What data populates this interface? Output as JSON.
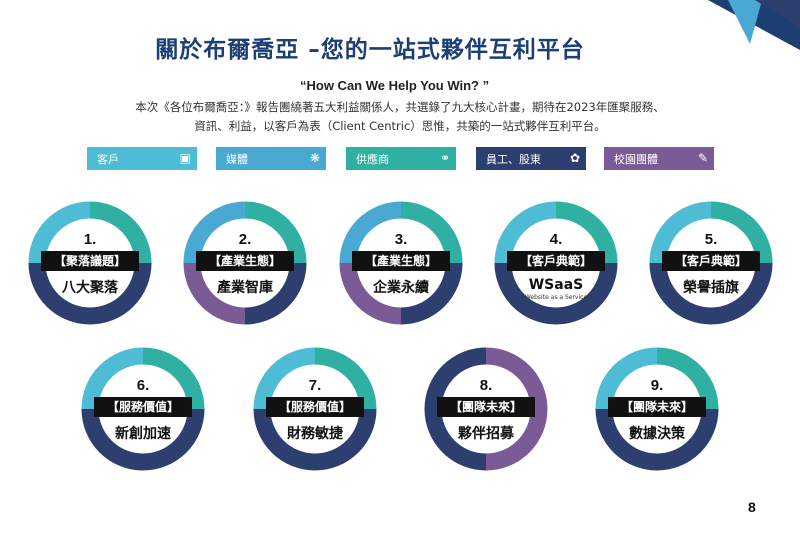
{
  "title": "關於布爾喬亞 –您的一站式夥伴互利平台",
  "quote": "“How Can We Help You Win? ”",
  "description": {
    "line1": "本次《各位布爾喬亞：》報告團繞著五大利益關係人，共選錄了九大核心計畫，期待在2023年匯聚服務、",
    "line2": "資訊、利益，以客戶為表（Client Centric）思惟，共築的一站式夥伴互利平台。"
  },
  "stakeholders": [
    {
      "label": "客戶",
      "icon": "briefcase-icon",
      "color": "#4fbcd5"
    },
    {
      "label": "媒體",
      "icon": "network-icon",
      "color": "#4aa9d2"
    },
    {
      "label": "供應商",
      "icon": "handshake-icon",
      "color": "#2fb0a3"
    },
    {
      "label": "員工、股東",
      "icon": "hands-icon",
      "color": "#2d3f6e"
    },
    {
      "label": "校園團體",
      "icon": "clipboard-icon",
      "color": "#7b5b96"
    }
  ],
  "projects": [
    {
      "num": "1.",
      "tag": "【聚落議題】",
      "name": "八大聚落",
      "sub": "",
      "colors": [
        "#2fb0a3",
        "#2d3f6e",
        "#2d3f6e",
        "#4fbcd5"
      ]
    },
    {
      "num": "2.",
      "tag": "【產業生態】",
      "name": "產業智庫",
      "sub": "",
      "colors": [
        "#2fb0a3",
        "#2d3f6e",
        "#7b5b96",
        "#4aa9d2"
      ]
    },
    {
      "num": "3.",
      "tag": "【產業生態】",
      "name": "企業永續",
      "sub": "",
      "colors": [
        "#2fb0a3",
        "#2d3f6e",
        "#7b5b96",
        "#4aa9d2"
      ]
    },
    {
      "num": "4.",
      "tag": "【客戶典範】",
      "name": "WSaaS",
      "sub": "(Website as a Service)",
      "colors": [
        "#2fb0a3",
        "#2d3f6e",
        "#2d3f6e",
        "#4fbcd5"
      ]
    },
    {
      "num": "5.",
      "tag": "【客戶典範】",
      "name": "榮譽插旗",
      "sub": "",
      "colors": [
        "#2fb0a3",
        "#2d3f6e",
        "#2d3f6e",
        "#4fbcd5"
      ]
    },
    {
      "num": "6.",
      "tag": "【服務價值】",
      "name": "新創加速",
      "sub": "",
      "colors": [
        "#2fb0a3",
        "#2d3f6e",
        "#2d3f6e",
        "#4fbcd5"
      ]
    },
    {
      "num": "7.",
      "tag": "【服務價值】",
      "name": "財務敏捷",
      "sub": "",
      "colors": [
        "#2fb0a3",
        "#2d3f6e",
        "#2d3f6e",
        "#4fbcd5"
      ]
    },
    {
      "num": "8.",
      "tag": "【團隊未來】",
      "name": "夥伴招募",
      "sub": "",
      "colors": [
        "#7b5b96",
        "#7b5b96",
        "#2d3f6e",
        "#2d3f6e"
      ]
    },
    {
      "num": "9.",
      "tag": "【團隊未來】",
      "name": "數據決策",
      "sub": "",
      "colors": [
        "#2fb0a3",
        "#2d3f6e",
        "#2d3f6e",
        "#4fbcd5"
      ]
    }
  ],
  "page_number": "8"
}
